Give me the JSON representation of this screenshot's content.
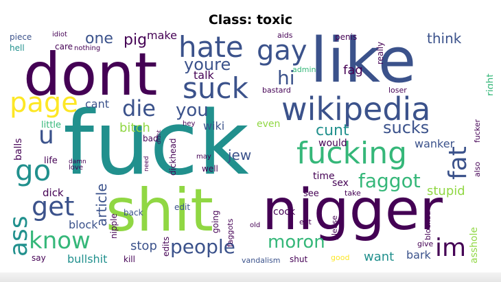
{
  "title": "Class: toxic",
  "palette": {
    "dark_purple": "#440154",
    "indigo": "#3b528b",
    "teal": "#21908d",
    "green": "#35b779",
    "lime": "#90d743",
    "yellow": "#fde725"
  },
  "words": {
    "fuck": "fuck",
    "shit": "shit",
    "nigger": "nigger",
    "dont": "dont",
    "like": "like",
    "hate": "hate",
    "gay": "gay",
    "suck": "suck",
    "wikipedia": "wikipedia",
    "fucking": "fucking",
    "page": "page",
    "die": "die",
    "you": "you",
    "youre": "youre",
    "hi": "hi",
    "go": "go",
    "u": "u",
    "get": "get",
    "ass": "ass",
    "know": "know",
    "fat": "fat",
    "faggot": "faggot",
    "im": "im",
    "people": "people",
    "moron": "moron",
    "one": "one",
    "pig": "pig",
    "make": "make",
    "think": "think",
    "talk": "talk",
    "cunt": "cunt",
    "sucks": "sucks",
    "fag": "fag",
    "bitch": "bitch",
    "cant": "cant",
    "wiki": "wiki",
    "jew": "jew",
    "stupid": "stupid",
    "wanker": "wanker",
    "dick": "dick",
    "article": "article",
    "block": "block",
    "stop": "stop",
    "bullshit": "bullshit",
    "want": "want",
    "bark": "bark",
    "asshole": "asshole",
    "sex": "sex",
    "time": "time",
    "cock": "cock",
    "see": "see",
    "would": "would",
    "even": "even",
    "right": "right",
    "balls": "balls",
    "little": "little",
    "life": "life",
    "piece": "piece",
    "idiot": "idiot",
    "aids": "aids",
    "penis": "penis",
    "hell": "hell",
    "care": "care",
    "nothing": "nothing",
    "really": "really",
    "admin": "admin",
    "bastard": "bastard",
    "loser": "loser",
    "fucker": "fucker",
    "also": "also",
    "vandalism": "vandalism",
    "shut": "shut",
    "good": "good",
    "give": "give",
    "kill": "kill",
    "say": "say",
    "edits": "edits",
    "edit": "edit",
    "back": "back",
    "nipple": "nipple",
    "going": "going",
    "faggots": "faggots",
    "eat": "eat",
    "please": "please",
    "blocked": "blocked",
    "take": "take",
    "well": "well",
    "may": "may",
    "dickhead": "dickhead",
    "bad": "bad",
    "hey": "hey",
    "love": "love",
    "damn": "damn",
    "old": "old",
    "need": "need",
    "didnt": "didnt"
  }
}
